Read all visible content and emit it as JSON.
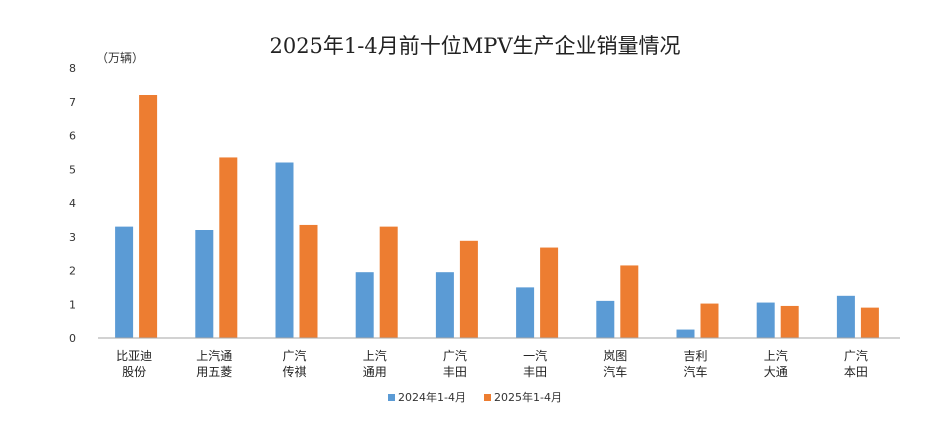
{
  "chart_data": {
    "type": "bar",
    "title": "2025年1-4月前十位MPV生产企业销量情况",
    "ylabel": "（万辆）",
    "xlabel": "",
    "ylim": [
      0,
      8
    ],
    "yticks": [
      "0",
      "1",
      "2",
      "3",
      "4",
      "5",
      "6",
      "7",
      "8"
    ],
    "grid": false,
    "legend_position": "bottom",
    "categories": [
      [
        "比亚迪",
        "股份"
      ],
      [
        "上汽通",
        "用五菱"
      ],
      [
        "广汽",
        "传祺"
      ],
      [
        "上汽",
        "通用"
      ],
      [
        "广汽",
        "丰田"
      ],
      [
        "一汽",
        "丰田"
      ],
      [
        "岚图",
        "汽车"
      ],
      [
        "吉利",
        "汽车"
      ],
      [
        "上汽",
        "大通"
      ],
      [
        "广汽",
        "本田"
      ]
    ],
    "series": [
      {
        "name": "2024年1-4月",
        "color": "#5b9bd5",
        "values": [
          3.3,
          3.2,
          5.2,
          1.95,
          1.95,
          1.5,
          1.1,
          0.25,
          1.05,
          1.25
        ]
      },
      {
        "name": "2025年1-4月",
        "color": "#ed7d31",
        "values": [
          7.2,
          5.35,
          3.35,
          3.3,
          2.88,
          2.68,
          2.15,
          1.02,
          0.95,
          0.9
        ]
      }
    ]
  }
}
